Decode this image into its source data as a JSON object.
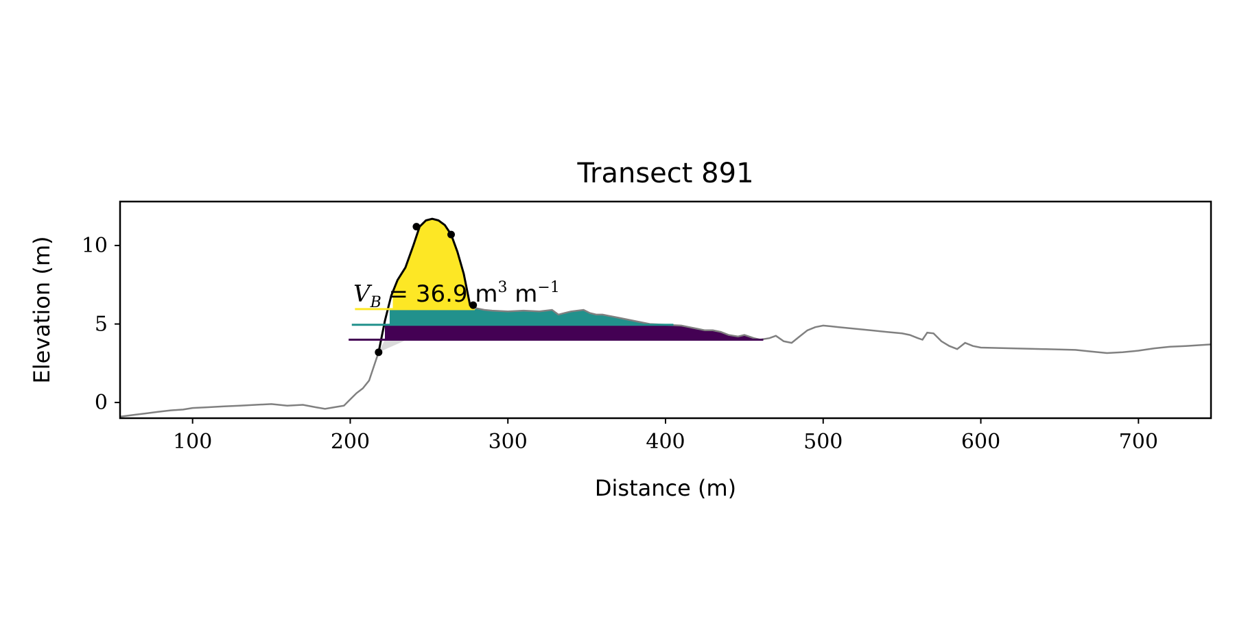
{
  "chart_data": {
    "type": "area",
    "title": "Transect 891",
    "xlabel": "Distance (m)",
    "ylabel": "Elevation (m)",
    "xlim": [
      54,
      746
    ],
    "ylim": [
      -1,
      12.8
    ],
    "x_ticks": [
      100,
      200,
      300,
      400,
      500,
      600,
      700
    ],
    "y_ticks": [
      0,
      5,
      10
    ],
    "grid": false,
    "colors": {
      "profile": "#808080",
      "dune": "#000000",
      "band_top": "#fde725",
      "band_mid": "#21918c",
      "band_low": "#440154",
      "hatch": "#d3d3d3"
    },
    "profile": {
      "x": [
        54,
        62,
        70,
        78,
        86,
        94,
        100,
        110,
        120,
        130,
        140,
        150,
        160,
        170,
        178,
        184,
        190,
        196,
        200,
        204,
        208,
        212,
        215,
        218,
        222,
        226,
        230,
        235,
        240,
        244,
        248,
        252,
        256,
        260,
        264,
        268,
        272,
        276,
        280,
        285,
        290,
        300,
        310,
        320,
        328,
        332,
        336,
        340,
        348,
        352,
        356,
        360,
        370,
        380,
        390,
        400,
        410,
        415,
        420,
        425,
        430,
        435,
        440,
        446,
        450,
        456,
        460,
        466,
        470,
        475,
        480,
        485,
        490,
        495,
        500,
        505,
        510,
        520,
        530,
        540,
        550,
        555,
        560,
        563,
        566,
        570,
        575,
        580,
        585,
        590,
        595,
        600,
        620,
        640,
        660,
        670,
        680,
        690,
        700,
        710,
        720,
        730,
        746
      ],
      "y": [
        -0.9,
        -0.8,
        -0.7,
        -0.6,
        -0.5,
        -0.45,
        -0.35,
        -0.3,
        -0.25,
        -0.2,
        -0.15,
        -0.1,
        -0.2,
        -0.15,
        -0.3,
        -0.4,
        -0.3,
        -0.2,
        0.2,
        0.6,
        0.9,
        1.4,
        2.3,
        3.2,
        5.2,
        6.8,
        7.8,
        8.6,
        10.0,
        11.2,
        11.6,
        11.7,
        11.6,
        11.3,
        10.7,
        9.6,
        8.2,
        6.2,
        6.0,
        5.9,
        5.85,
        5.8,
        5.85,
        5.8,
        5.9,
        5.6,
        5.7,
        5.8,
        5.9,
        5.7,
        5.6,
        5.6,
        5.4,
        5.2,
        5.0,
        4.95,
        4.9,
        4.8,
        4.7,
        4.6,
        4.6,
        4.5,
        4.3,
        4.2,
        4.3,
        4.1,
        4.0,
        4.1,
        4.25,
        3.9,
        3.8,
        4.2,
        4.6,
        4.8,
        4.9,
        4.85,
        4.8,
        4.7,
        4.6,
        4.5,
        4.4,
        4.3,
        4.1,
        4.0,
        4.45,
        4.4,
        3.9,
        3.6,
        3.4,
        3.8,
        3.6,
        3.5,
        3.45,
        3.4,
        3.35,
        3.25,
        3.15,
        3.2,
        3.3,
        3.45,
        3.55,
        3.6,
        3.7
      ]
    },
    "dune_points": [
      {
        "x": 218,
        "y": 3.2
      },
      {
        "x": 242,
        "y": 11.2
      },
      {
        "x": 264,
        "y": 10.7
      },
      {
        "x": 278,
        "y": 6.2
      }
    ],
    "levels": [
      {
        "z": 5.95,
        "x_start": 203,
        "x_end": 279
      },
      {
        "z": 4.95,
        "x_start": 201,
        "x_end": 405
      },
      {
        "z": 4.0,
        "x_start": 199,
        "x_end": 462
      }
    ],
    "annotation": {
      "prefix": "V",
      "subscript": "B",
      "equals": " = ",
      "value": "36.9",
      "unit_m": " m",
      "unit_m_exp": "3",
      "unit_per": "  m",
      "unit_per_exp": "−1"
    }
  }
}
